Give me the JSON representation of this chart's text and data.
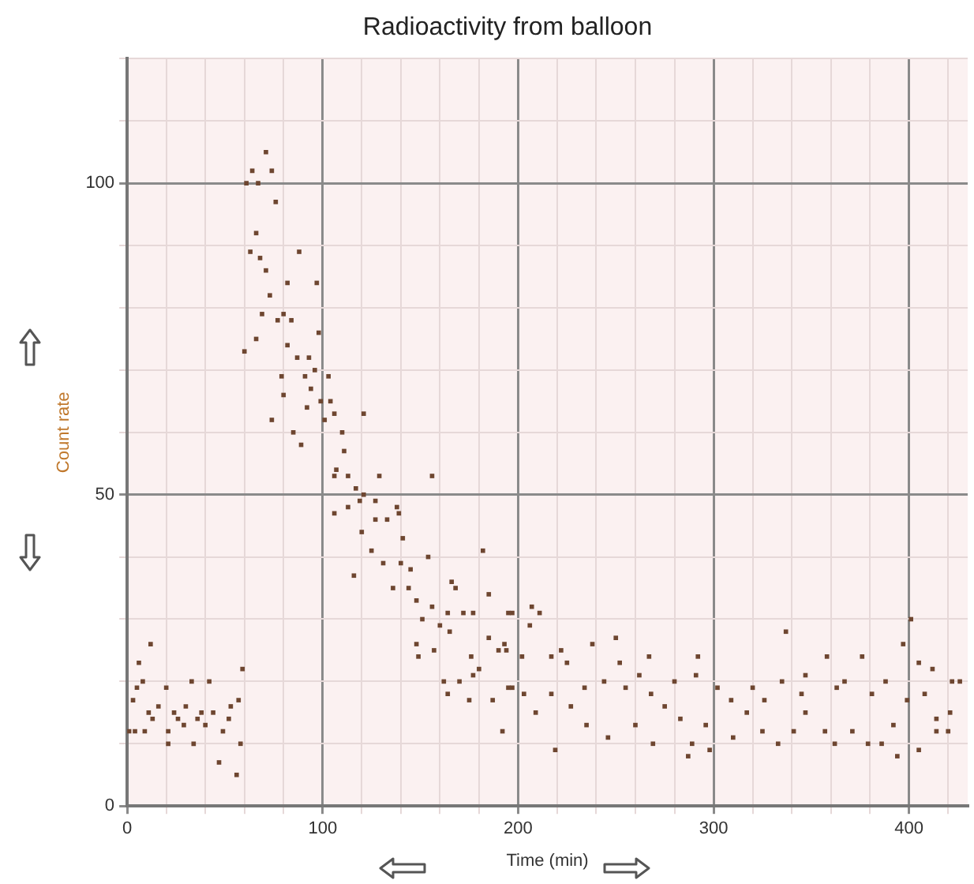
{
  "chart_data": {
    "type": "scatter",
    "title": "Radioactivity from balloon",
    "xlabel": "Time (min)",
    "ylabel": "Count rate",
    "xlim": [
      0,
      430
    ],
    "xticks": [
      0,
      {
        "value": 20,
        "label": null
      },
      {
        "value": 40,
        "label": null
      },
      {
        "value": 60,
        "label": null
      },
      {
        "value": 80,
        "label": null
      },
      100,
      {
        "value": 120,
        "label": null
      },
      {
        "value": 140,
        "label": null
      },
      {
        "value": 160,
        "label": null
      },
      {
        "value": 180,
        "label": null
      },
      200,
      {
        "value": 220,
        "label": null
      },
      {
        "value": 240,
        "label": null
      },
      {
        "value": 260,
        "label": null
      },
      {
        "value": 280,
        "label": null
      },
      300,
      {
        "value": 320,
        "label": null
      },
      {
        "value": 340,
        "label": null
      },
      {
        "value": 360,
        "label": null
      },
      {
        "value": 380,
        "label": null
      },
      400,
      {
        "value": 420,
        "label": null
      }
    ],
    "ylim": [
      0,
      120
    ],
    "yticks": [
      0,
      {
        "value": 10,
        "label": null
      },
      {
        "value": 20,
        "label": null
      },
      {
        "value": 30,
        "label": null
      },
      {
        "value": 40,
        "label": null
      },
      50,
      {
        "value": 60,
        "label": null
      },
      {
        "value": 70,
        "label": null
      },
      {
        "value": 80,
        "label": null
      },
      {
        "value": 90,
        "label": null
      },
      100,
      {
        "value": 110,
        "label": null
      },
      {
        "value": 120,
        "label": null
      }
    ],
    "grid": true,
    "legend": false,
    "marker": "square",
    "series": [
      {
        "color": "#6e4630",
        "x": [
          1,
          3,
          4,
          5,
          6,
          8,
          9,
          11,
          12,
          13,
          16,
          20,
          21,
          21,
          24,
          26,
          29,
          30,
          33,
          34,
          36,
          38,
          40,
          42,
          44,
          47,
          49,
          52,
          53,
          56,
          57,
          58,
          59,
          60,
          61,
          63,
          64,
          66,
          66,
          67,
          68,
          69,
          71,
          71,
          73,
          74,
          74,
          76,
          77,
          79,
          80,
          80,
          82,
          82,
          84,
          85,
          87,
          88,
          89,
          91,
          92,
          93,
          94,
          96,
          97,
          98,
          99,
          101,
          103,
          104,
          106,
          106,
          106,
          107,
          110,
          111,
          113,
          113,
          116,
          117,
          119,
          120,
          121,
          121,
          125,
          127,
          127,
          129,
          131,
          133,
          136,
          138,
          139,
          140,
          141,
          144,
          145,
          148,
          148,
          149,
          151,
          154,
          156,
          156,
          157,
          160,
          162,
          164,
          164,
          165,
          166,
          168,
          170,
          172,
          175,
          176,
          177,
          177,
          180,
          182,
          185,
          185,
          187,
          190,
          192,
          193,
          194,
          195,
          195,
          197,
          197,
          202,
          203,
          206,
          207,
          209,
          211,
          217,
          217,
          219,
          222,
          225,
          227,
          234,
          235,
          238,
          244,
          246,
          250,
          252,
          255,
          260,
          262,
          267,
          268,
          269,
          275,
          280,
          283,
          287,
          289,
          291,
          292,
          296,
          298,
          302,
          309,
          310,
          317,
          320,
          325,
          326,
          333,
          335,
          337,
          341,
          345,
          347,
          347,
          357,
          358,
          362,
          363,
          367,
          371,
          376,
          379,
          381,
          386,
          388,
          392,
          394,
          397,
          399,
          401,
          405,
          405,
          408,
          412,
          414,
          414,
          420,
          421,
          422,
          426
        ],
        "values": [
          12,
          17,
          12,
          19,
          23,
          20,
          12,
          15,
          26,
          14,
          16,
          19,
          10,
          12,
          15,
          14,
          13,
          16,
          20,
          10,
          14,
          15,
          13,
          20,
          15,
          7,
          12,
          14,
          16,
          5,
          17,
          10,
          22,
          73,
          100,
          89,
          102,
          75,
          92,
          100,
          88,
          79,
          86,
          105,
          82,
          102,
          62,
          97,
          78,
          69,
          79,
          66,
          74,
          84,
          78,
          60,
          72,
          89,
          58,
          69,
          64,
          72,
          67,
          70,
          84,
          76,
          65,
          62,
          69,
          65,
          53,
          47,
          63,
          54,
          60,
          57,
          53,
          48,
          37,
          51,
          49,
          44,
          50,
          63,
          41,
          49,
          46,
          53,
          39,
          46,
          35,
          48,
          47,
          39,
          43,
          35,
          38,
          33,
          26,
          24,
          30,
          40,
          53,
          32,
          25,
          29,
          20,
          31,
          18,
          28,
          36,
          35,
          20,
          31,
          17,
          24,
          31,
          21,
          22,
          41,
          34,
          27,
          17,
          25,
          12,
          26,
          25,
          31,
          19,
          31,
          19,
          24,
          18,
          29,
          32,
          15,
          31,
          24,
          18,
          9,
          25,
          23,
          16,
          19,
          13,
          26,
          20,
          11,
          27,
          23,
          19,
          13,
          21,
          24,
          18,
          10,
          16,
          20,
          14,
          8,
          10,
          21,
          24,
          13,
          9,
          19,
          17,
          11,
          15,
          19,
          12,
          17,
          10,
          20,
          28,
          12,
          18,
          21,
          15,
          12,
          24,
          10,
          19,
          20,
          12,
          24,
          10,
          18,
          10,
          20,
          13,
          8,
          26,
          17,
          30,
          23,
          9,
          18,
          22,
          14,
          12,
          12,
          15,
          20,
          20
        ]
      }
    ]
  }
}
